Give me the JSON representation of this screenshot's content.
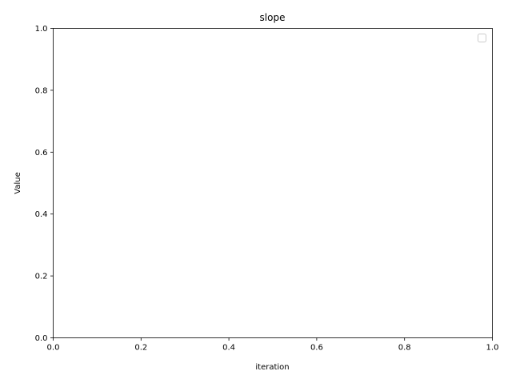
{
  "chart_data": {
    "type": "line",
    "title": "slope",
    "xlabel": "iteration",
    "ylabel": "Value",
    "xlim": [
      0,
      1
    ],
    "ylim": [
      0,
      1
    ],
    "xticks": [
      "0.0",
      "0.2",
      "0.4",
      "0.6",
      "0.8",
      "1.0"
    ],
    "yticks": [
      "0.0",
      "0.2",
      "0.4",
      "0.6",
      "0.8",
      "1.0"
    ],
    "series": [],
    "legend": "upper-right (empty)",
    "grid": false
  }
}
